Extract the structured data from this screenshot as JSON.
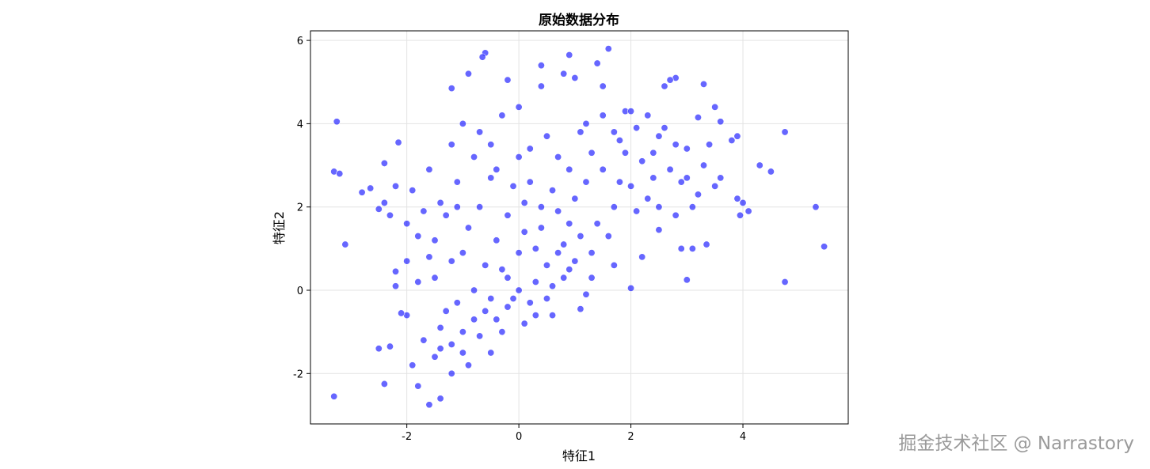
{
  "chart_data": {
    "type": "scatter",
    "title": "原始数据分布",
    "x_label": "特征1",
    "y_label": "特征2",
    "color": "blue",
    "alpha": 0.6,
    "grid": true,
    "xlim": [
      -3.72,
      5.88
    ],
    "ylim": [
      -3.21,
      6.23
    ],
    "xticks": [
      -2,
      0,
      2,
      4
    ],
    "yticks": [
      -2,
      0,
      2,
      4,
      6
    ],
    "x": [
      -3.25,
      -3.3,
      -3.2,
      -3.1,
      -3.3,
      5.3,
      5.45,
      4.75,
      4.75,
      1.6,
      -0.6,
      -0.65,
      0.9,
      2.8,
      3.3,
      -1.6,
      -1.4,
      -1.8,
      -2.4,
      -2.5,
      -2.3,
      -2.2,
      -2.15,
      -2.4,
      -2.8,
      -2.65,
      -2.5,
      4.3,
      4.5,
      4.1,
      3.95,
      3.0,
      2.0,
      3.1,
      3.35,
      2.9,
      0,
      0.2,
      -0.2,
      0.3,
      0.5,
      0.7,
      0.8,
      1.0,
      -0.5,
      -0.8,
      -1.0,
      -1.2,
      -1.5,
      -1.3,
      -0.3,
      0.1,
      0.4,
      0.6,
      -0.1,
      0.2,
      0.2,
      -0.4,
      -0.8,
      -1.1,
      -1.4,
      -1.7,
      -2.0,
      -1.9,
      -1.6,
      -1.2,
      -0.7,
      -0.3,
      0,
      0.4,
      0.8,
      1.0,
      1.2,
      1.5,
      1.8,
      2.1,
      2.4,
      2.7,
      2.9,
      3.2,
      3.5,
      3.9,
      3.8,
      3.6,
      3.4,
      3.0,
      2.6,
      2.2,
      2.0,
      1.7,
      1.4,
      1.1,
      1.3,
      1.6,
      2.1,
      2.3,
      2.5,
      2.5,
      2.2,
      1.7,
      1.3,
      1.1,
      0.6,
      0.3,
      0.1,
      -0.3,
      -0.5,
      -0.9,
      -1.2,
      -1.9,
      -2.0,
      -2.1,
      -1.7,
      -1.4,
      -1.8,
      -2.0,
      -2.3,
      -1.6,
      -1.0,
      -0.6,
      -0.4,
      -0.9,
      -1.3,
      -0.7,
      -0.2,
      0.3,
      0.8,
      0.9,
      1.2,
      1.5,
      1.9,
      2.3,
      1.9,
      1.5,
      1.1,
      0.7,
      0.5,
      0,
      -0.5,
      -1.0,
      -1.2,
      -0.9,
      -0.2,
      0.4,
      1.4,
      2.6,
      2.7,
      3.2,
      3.5,
      3.9,
      4.0,
      3.6,
      3.1,
      2.8,
      2.4,
      1.8,
      1.0,
      0.7,
      0.4,
      0,
      -0.2,
      -0.6,
      -0.7,
      -1.1,
      -1.5,
      -1.2,
      -0.8,
      -0.1,
      0.5,
      0.9,
      1.2,
      0.6,
      -0.4,
      -1.0,
      -1.4,
      -2.2,
      -2.2,
      -2.4,
      -1.8,
      -1.5,
      -1.1,
      -0.5,
      0.1,
      0.9,
      1.3,
      1.7,
      2.0,
      2.5,
      2.8,
      3.3,
      3.0
    ],
    "values": [
      4.05,
      2.85,
      2.8,
      1.1,
      -2.55,
      2.0,
      1.05,
      0.2,
      3.8,
      5.8,
      5.7,
      5.6,
      5.65,
      5.1,
      4.95,
      -2.75,
      -2.6,
      -2.3,
      -2.25,
      -1.4,
      -1.35,
      0.45,
      3.55,
      3.05,
      2.35,
      2.45,
      1.95,
      3.0,
      2.85,
      1.9,
      1.8,
      0.25,
      0.05,
      1.0,
      1.1,
      1.0,
      0,
      -0.3,
      -0.4,
      0.2,
      0.6,
      0.9,
      1.1,
      0.7,
      -0.2,
      -0.7,
      -1.0,
      -1.3,
      -1.6,
      -0.5,
      0.5,
      1.4,
      2.0,
      2.4,
      2.5,
      2.6,
      3.4,
      2.9,
      3.2,
      2.6,
      2.1,
      1.9,
      1.6,
      2.4,
      2.9,
      3.5,
      3.8,
      4.2,
      4.4,
      4.9,
      5.2,
      5.1,
      4.0,
      4.2,
      3.6,
      3.9,
      3.3,
      2.9,
      2.6,
      2.3,
      2.5,
      2.2,
      3.6,
      4.05,
      3.5,
      3.4,
      3.9,
      3.1,
      2.5,
      2.0,
      1.6,
      1.3,
      0.9,
      1.3,
      1.9,
      2.2,
      2.0,
      1.45,
      0.8,
      0.6,
      0.3,
      -0.45,
      0.1,
      -0.6,
      -0.8,
      -1.0,
      -1.5,
      -1.8,
      -2.0,
      -1.8,
      -0.6,
      -0.55,
      -1.2,
      -0.9,
      0.2,
      0.7,
      1.8,
      0.8,
      0.9,
      0.6,
      1.2,
      1.5,
      1.8,
      2.0,
      1.8,
      1.0,
      0.3,
      1.6,
      2.6,
      2.9,
      3.3,
      4.2,
      4.3,
      4.9,
      3.8,
      3.2,
      3.7,
      3.2,
      3.5,
      4.0,
      4.85,
      5.2,
      5.05,
      5.4,
      5.45,
      4.9,
      5.05,
      4.15,
      4.4,
      3.7,
      2.1,
      2.7,
      2.0,
      1.8,
      2.7,
      2.6,
      2.2,
      1.9,
      1.5,
      0.9,
      0.3,
      -0.5,
      -1.1,
      -0.3,
      0.3,
      0.7,
      0,
      -0.2,
      -0.2,
      0.5,
      -0.1,
      -0.6,
      -0.7,
      -1.5,
      -1.4,
      0.1,
      2.5,
      2.1,
      1.3,
      1.2,
      2.0,
      2.7,
      2.1,
      2.9,
      3.3,
      3.8,
      4.3,
      3.7,
      3.5,
      3.0,
      2.7
    ]
  },
  "watermark": "掘金技术社区 @ Narrastory"
}
